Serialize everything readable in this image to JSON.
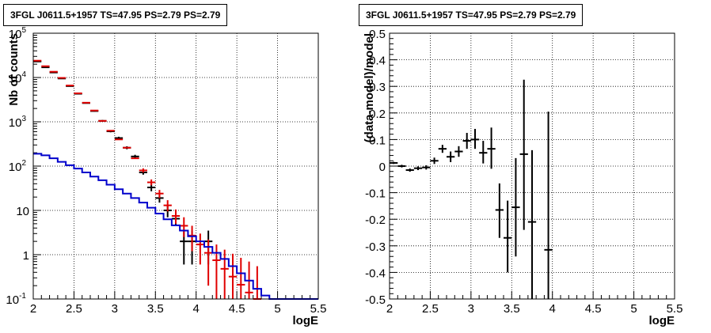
{
  "chart_data": [
    {
      "type": "line",
      "title": "3FGL J0611.5+1957 TS=47.95 PS=2.79 PS=2.79",
      "xlabel": "logE",
      "ylabel": "Nb of counts",
      "xlim": [
        2,
        5.5
      ],
      "ylim": [
        0.1,
        100000
      ],
      "yscale": "log",
      "grid": true,
      "xticks": [
        "2",
        "2.5",
        "3",
        "3.5",
        "4",
        "4.5",
        "5",
        "5.5"
      ],
      "yticks": [
        {
          "value": 0.1,
          "base": "10",
          "exp": "-1"
        },
        {
          "value": 1,
          "base": "1",
          "exp": ""
        },
        {
          "value": 10,
          "base": "10",
          "exp": ""
        },
        {
          "value": 100,
          "base": "10",
          "exp": "2"
        },
        {
          "value": 1000,
          "base": "10",
          "exp": "3"
        },
        {
          "value": 10000,
          "base": "10",
          "exp": "4"
        },
        {
          "value": 100000,
          "base": "10",
          "exp": "5"
        }
      ],
      "bin_width": 0.1,
      "series": [
        {
          "color": "#000000",
          "style": "crosses",
          "points": [
            {
              "x": 2.05,
              "y": 23000,
              "lo": 23000,
              "hi": 23000
            },
            {
              "x": 2.15,
              "y": 17000,
              "lo": 17000,
              "hi": 17000
            },
            {
              "x": 2.25,
              "y": 13000,
              "lo": 13000,
              "hi": 13000
            },
            {
              "x": 2.35,
              "y": 9500,
              "lo": 9500,
              "hi": 9500
            },
            {
              "x": 2.45,
              "y": 6400,
              "lo": 6400,
              "hi": 6400
            },
            {
              "x": 2.55,
              "y": 4300,
              "lo": 4300,
              "hi": 4300
            },
            {
              "x": 2.65,
              "y": 2650,
              "lo": 2600,
              "hi": 2700
            },
            {
              "x": 2.75,
              "y": 1750,
              "lo": 1700,
              "hi": 1800
            },
            {
              "x": 2.85,
              "y": 1050,
              "lo": 1000,
              "hi": 1100
            },
            {
              "x": 2.95,
              "y": 610,
              "lo": 580,
              "hi": 640
            },
            {
              "x": 3.05,
              "y": 430,
              "lo": 400,
              "hi": 460
            },
            {
              "x": 3.15,
              "y": 260,
              "lo": 240,
              "hi": 280
            },
            {
              "x": 3.25,
              "y": 165,
              "lo": 150,
              "hi": 180
            },
            {
              "x": 3.35,
              "y": 72,
              "lo": 64,
              "hi": 81
            },
            {
              "x": 3.45,
              "y": 33,
              "lo": 27,
              "hi": 39
            },
            {
              "x": 3.55,
              "y": 19,
              "lo": 15,
              "hi": 23
            },
            {
              "x": 3.65,
              "y": 10,
              "lo": 7,
              "hi": 13
            },
            {
              "x": 3.75,
              "y": 6.5,
              "lo": 4.5,
              "hi": 9
            },
            {
              "x": 3.85,
              "y": 2,
              "lo": 0.6,
              "hi": 3.5
            },
            {
              "x": 3.95,
              "y": 2,
              "lo": 0.6,
              "hi": 3.5
            },
            {
              "x": 4.15,
              "y": 2,
              "lo": 0.6,
              "hi": 3.5
            }
          ]
        },
        {
          "color": "#e00000",
          "style": "crosses",
          "points": [
            {
              "x": 2.05,
              "y": 24000,
              "lo": 24000,
              "hi": 24000
            },
            {
              "x": 2.15,
              "y": 18000,
              "lo": 18000,
              "hi": 18000
            },
            {
              "x": 2.25,
              "y": 13500,
              "lo": 13500,
              "hi": 13500
            },
            {
              "x": 2.35,
              "y": 9800,
              "lo": 9800,
              "hi": 9800
            },
            {
              "x": 2.45,
              "y": 6600,
              "lo": 6600,
              "hi": 6600
            },
            {
              "x": 2.55,
              "y": 4400,
              "lo": 4400,
              "hi": 4400
            },
            {
              "x": 2.65,
              "y": 2700,
              "lo": 2700,
              "hi": 2700
            },
            {
              "x": 2.75,
              "y": 1800,
              "lo": 1800,
              "hi": 1800
            },
            {
              "x": 2.85,
              "y": 1050,
              "lo": 1050,
              "hi": 1050
            },
            {
              "x": 2.95,
              "y": 630,
              "lo": 630,
              "hi": 630
            },
            {
              "x": 3.05,
              "y": 400,
              "lo": 400,
              "hi": 400
            },
            {
              "x": 3.15,
              "y": 260,
              "lo": 260,
              "hi": 260
            },
            {
              "x": 3.25,
              "y": 150,
              "lo": 150,
              "hi": 150
            },
            {
              "x": 3.35,
              "y": 80,
              "lo": 72,
              "hi": 89
            },
            {
              "x": 3.45,
              "y": 43,
              "lo": 37,
              "hi": 50
            },
            {
              "x": 3.55,
              "y": 24,
              "lo": 19,
              "hi": 29
            },
            {
              "x": 3.65,
              "y": 13,
              "lo": 9.5,
              "hi": 17
            },
            {
              "x": 3.75,
              "y": 7.5,
              "lo": 5,
              "hi": 10.5
            },
            {
              "x": 3.85,
              "y": 4.5,
              "lo": 2.5,
              "hi": 7
            },
            {
              "x": 3.95,
              "y": 2.7,
              "lo": 1.2,
              "hi": 4.5
            },
            {
              "x": 4.05,
              "y": 1.7,
              "lo": 0.6,
              "hi": 3
            },
            {
              "x": 4.15,
              "y": 1.1,
              "lo": 0.2,
              "hi": 2.2
            },
            {
              "x": 4.25,
              "y": 0.75,
              "lo": 0.1,
              "hi": 1.7
            },
            {
              "x": 4.35,
              "y": 0.48,
              "lo": 0.1,
              "hi": 1.3
            },
            {
              "x": 4.45,
              "y": 0.32,
              "lo": 0.1,
              "hi": 1.05
            },
            {
              "x": 4.55,
              "y": 0.21,
              "lo": 0.1,
              "hi": 0.85
            },
            {
              "x": 4.65,
              "y": 0.14,
              "lo": 0.1,
              "hi": 0.7
            },
            {
              "x": 4.75,
              "y": 0.1,
              "lo": 0.1,
              "hi": 0.55
            }
          ]
        },
        {
          "color": "#0000cc",
          "style": "step",
          "edges": [
            2.0,
            2.1,
            2.2,
            2.3,
            2.4,
            2.5,
            2.6,
            2.7,
            2.8,
            2.9,
            3.0,
            3.1,
            3.2,
            3.3,
            3.4,
            3.5,
            3.6,
            3.7,
            3.8,
            3.9,
            4.0,
            4.1,
            4.2,
            4.3,
            4.4,
            4.5,
            4.6,
            4.7,
            4.8,
            4.9,
            5.0,
            5.1,
            5.2,
            5.3,
            5.4,
            5.5
          ],
          "values": [
            190,
            175,
            150,
            125,
            105,
            88,
            72,
            58,
            48,
            38,
            30,
            24,
            19,
            15,
            11.5,
            8.5,
            6.3,
            4.6,
            3.5,
            2.6,
            2.0,
            1.5,
            1.1,
            0.8,
            0.55,
            0.38,
            0.26,
            0.17,
            0.12,
            0.1,
            0.1,
            0.1,
            0.1,
            0.1,
            0.1
          ]
        }
      ]
    },
    {
      "type": "scatter",
      "title": "3FGL J0611.5+1957 TS=47.95 PS=2.79 PS=2.79",
      "xlabel": "logE",
      "ylabel": "(data-model)/model",
      "xlim": [
        2,
        5.5
      ],
      "ylim": [
        -0.5,
        0.5
      ],
      "grid": true,
      "xticks": [
        "2",
        "2.5",
        "3",
        "3.5",
        "4",
        "4.5",
        "5",
        "5.5"
      ],
      "yticks": [
        "0.5",
        "0.4",
        "0.3",
        "0.2",
        "0.1",
        "0",
        "-0.1",
        "-0.2",
        "-0.3",
        "-0.4",
        "-0.5"
      ],
      "bin_width": 0.1,
      "series": [
        {
          "color": "#000000",
          "style": "crosses",
          "points": [
            {
              "x": 2.05,
              "y": 0.012,
              "lo": 0.008,
              "hi": 0.016
            },
            {
              "x": 2.15,
              "y": 0.0,
              "lo": -0.005,
              "hi": 0.005
            },
            {
              "x": 2.25,
              "y": -0.015,
              "lo": -0.021,
              "hi": -0.009
            },
            {
              "x": 2.35,
              "y": -0.008,
              "lo": -0.015,
              "hi": -0.001
            },
            {
              "x": 2.45,
              "y": -0.005,
              "lo": -0.013,
              "hi": 0.003
            },
            {
              "x": 2.55,
              "y": 0.02,
              "lo": 0.008,
              "hi": 0.032
            },
            {
              "x": 2.65,
              "y": 0.065,
              "lo": 0.05,
              "hi": 0.08
            },
            {
              "x": 2.75,
              "y": 0.035,
              "lo": 0.015,
              "hi": 0.055
            },
            {
              "x": 2.85,
              "y": 0.055,
              "lo": 0.035,
              "hi": 0.075
            },
            {
              "x": 2.95,
              "y": 0.095,
              "lo": 0.065,
              "hi": 0.125
            },
            {
              "x": 3.05,
              "y": 0.1,
              "lo": 0.065,
              "hi": 0.14
            },
            {
              "x": 3.15,
              "y": 0.05,
              "lo": 0.01,
              "hi": 0.095
            },
            {
              "x": 3.25,
              "y": 0.065,
              "lo": -0.01,
              "hi": 0.145
            },
            {
              "x": 3.35,
              "y": -0.165,
              "lo": -0.27,
              "hi": -0.065
            },
            {
              "x": 3.45,
              "y": -0.27,
              "lo": -0.4,
              "hi": -0.13
            },
            {
              "x": 3.55,
              "y": -0.155,
              "lo": -0.34,
              "hi": 0.03
            },
            {
              "x": 3.65,
              "y": 0.045,
              "lo": -0.24,
              "hi": 0.325
            },
            {
              "x": 3.75,
              "y": -0.21,
              "lo": -0.5,
              "hi": 0.06
            },
            {
              "x": 3.95,
              "y": -0.315,
              "lo": -0.5,
              "hi": 0.205
            }
          ]
        }
      ]
    }
  ]
}
